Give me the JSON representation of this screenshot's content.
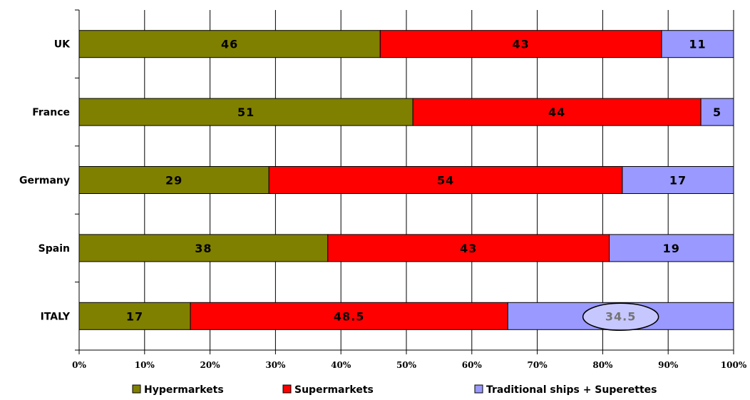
{
  "chart_data": {
    "type": "bar",
    "orientation": "horizontal",
    "stacked": true,
    "categories": [
      "UK",
      "France",
      "Germany",
      "Spain",
      "ITALY"
    ],
    "series": [
      {
        "name": "Hypermarkets",
        "color": "#808000",
        "values": [
          46,
          51,
          29,
          38,
          17
        ]
      },
      {
        "name": "Supermarkets",
        "color": "#ff0000",
        "values": [
          43,
          44,
          54,
          43,
          48.5
        ]
      },
      {
        "name": "Traditional ships + Superettes",
        "color": "#9999ff",
        "values": [
          11,
          5,
          17,
          19,
          34.5
        ]
      }
    ],
    "xlim": [
      0,
      100
    ],
    "x_ticks": [
      "0%",
      "10%",
      "20%",
      "30%",
      "40%",
      "50%",
      "60%",
      "70%",
      "80%",
      "90%",
      "100%"
    ],
    "grid": "vertical",
    "legend_position": "bottom",
    "highlight": {
      "category": "ITALY",
      "series": "Traditional ships + Superettes",
      "style": "ellipse"
    }
  }
}
